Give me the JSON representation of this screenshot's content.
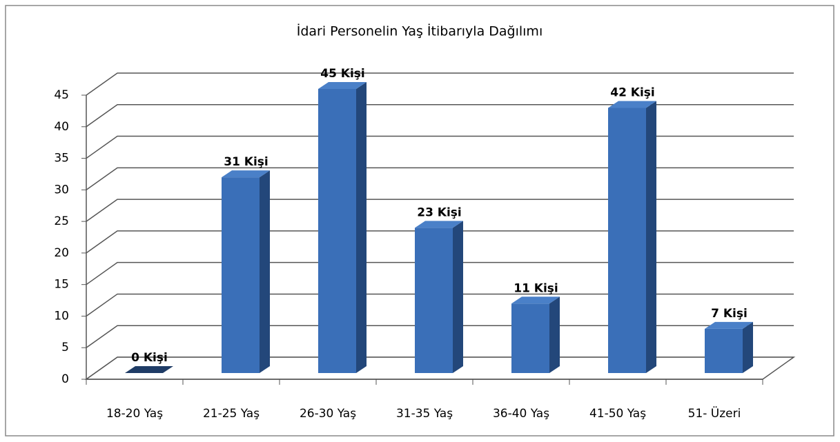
{
  "chart_data": {
    "type": "bar3d",
    "title": "İdari Personelin Yaş İtibarıyla Dağılımı",
    "categories": [
      "18-20 Yaş",
      "21-25 Yaş",
      "26-30 Yaş",
      "31-35 Yaş",
      "36-40 Yaş",
      "41-50 Yaş",
      "51- Üzeri"
    ],
    "values": [
      0,
      31,
      45,
      23,
      11,
      42,
      7
    ],
    "value_labels": [
      "0 Kişi",
      "31 Kişi",
      "45 Kişi",
      "23 Kişi",
      "11 Kişi",
      "42 Kişi",
      "7 Kişi"
    ],
    "color": "#3a6fb8",
    "ylim": [
      0,
      45
    ],
    "yticks": [
      0,
      5,
      10,
      15,
      20,
      25,
      30,
      35,
      40,
      45
    ],
    "grid": true
  }
}
